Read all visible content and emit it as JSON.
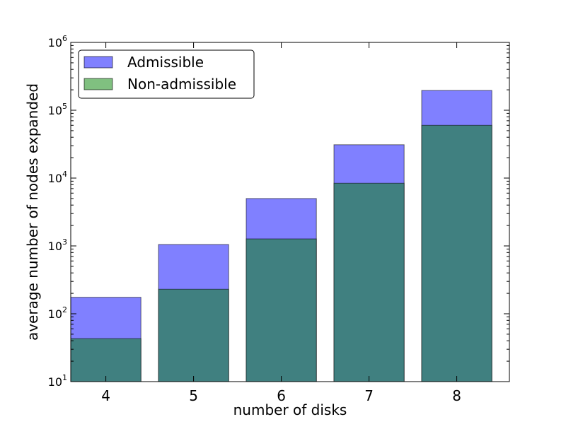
{
  "chart_data": {
    "type": "bar",
    "categories": [
      "4",
      "5",
      "6",
      "7",
      "8"
    ],
    "series": [
      {
        "name": "Admissible",
        "values": [
          175,
          1050,
          5000,
          31000,
          196000
        ],
        "color": "#8080ff"
      },
      {
        "name": "Non-admissible",
        "values": [
          43,
          230,
          1270,
          8400,
          60000
        ],
        "color": "#80c080"
      }
    ],
    "overlap_color": "#408080",
    "title": "",
    "xlabel": "number of disks",
    "ylabel": "average number of nodes expanded",
    "yscale": "log",
    "ylim": [
      10,
      1000000
    ],
    "ytick_bases": [
      "10",
      "10",
      "10",
      "10",
      "10",
      "10"
    ],
    "ytick_exponents": [
      "1",
      "2",
      "3",
      "4",
      "5",
      "6"
    ],
    "grid": false,
    "legend_position": "top-left"
  }
}
